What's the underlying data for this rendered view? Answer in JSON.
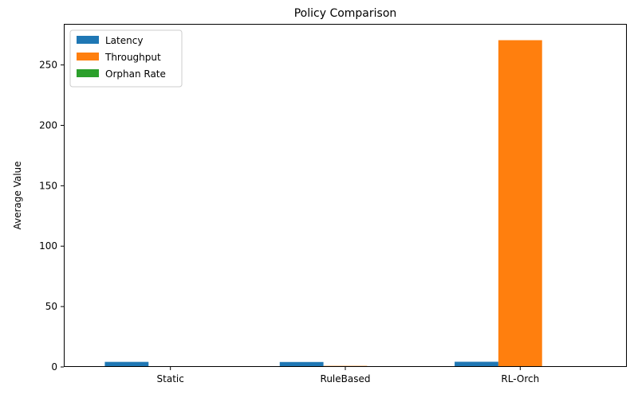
{
  "chart_data": {
    "type": "bar",
    "title": "Policy Comparison",
    "xlabel": "",
    "ylabel": "Average Value",
    "categories": [
      "Static",
      "RuleBased",
      "RL-Orch"
    ],
    "series": [
      {
        "name": "Latency",
        "color": "#1f77b4",
        "values": [
          4.2,
          4.1,
          4.3
        ]
      },
      {
        "name": "Throughput",
        "color": "#ff7f0e",
        "values": [
          0.4,
          0.9,
          270.5
        ]
      },
      {
        "name": "Orphan Rate",
        "color": "#2ca02c",
        "values": [
          0.05,
          0.04,
          0.0
        ]
      }
    ],
    "ylim": [
      0,
      284
    ],
    "yticks": [
      0,
      50,
      100,
      150,
      200,
      250
    ],
    "grid": false,
    "legend_position": "top-left"
  }
}
